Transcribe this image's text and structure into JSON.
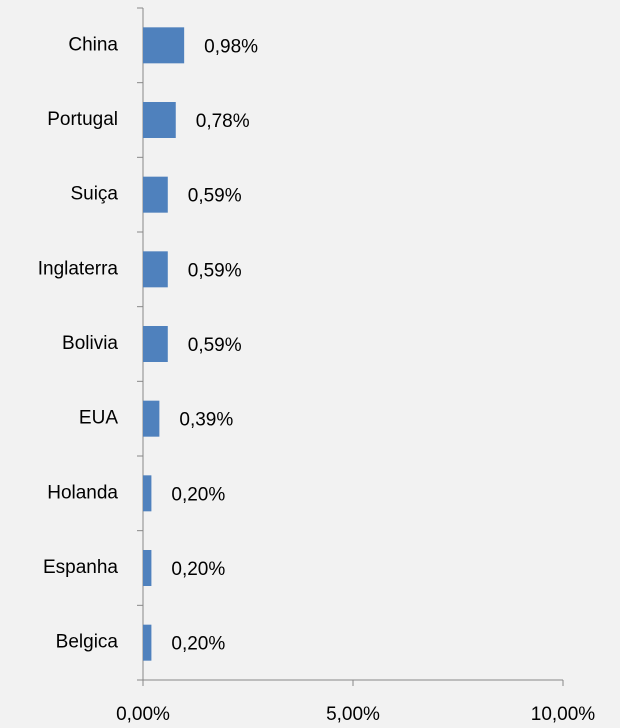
{
  "chart_data": {
    "type": "bar",
    "orientation": "horizontal",
    "categories": [
      "China",
      "Portugal",
      "Suiça",
      "Inglaterra",
      "Bolivia",
      "EUA",
      "Holanda",
      "Espanha",
      "Belgica"
    ],
    "values": [
      0.98,
      0.78,
      0.59,
      0.59,
      0.59,
      0.39,
      0.2,
      0.2,
      0.2
    ],
    "value_labels": [
      "0,98%",
      "0,78%",
      "0,59%",
      "0,59%",
      "0,59%",
      "0,39%",
      "0,20%",
      "0,20%",
      "0,20%"
    ],
    "color": "#4f81bd",
    "xlim": [
      0,
      10
    ],
    "xticks": [
      {
        "value": 0,
        "label": "0,00%"
      },
      {
        "value": 5,
        "label": "5,00%"
      },
      {
        "value": 10,
        "label": "10,00%"
      }
    ],
    "grid": false
  }
}
